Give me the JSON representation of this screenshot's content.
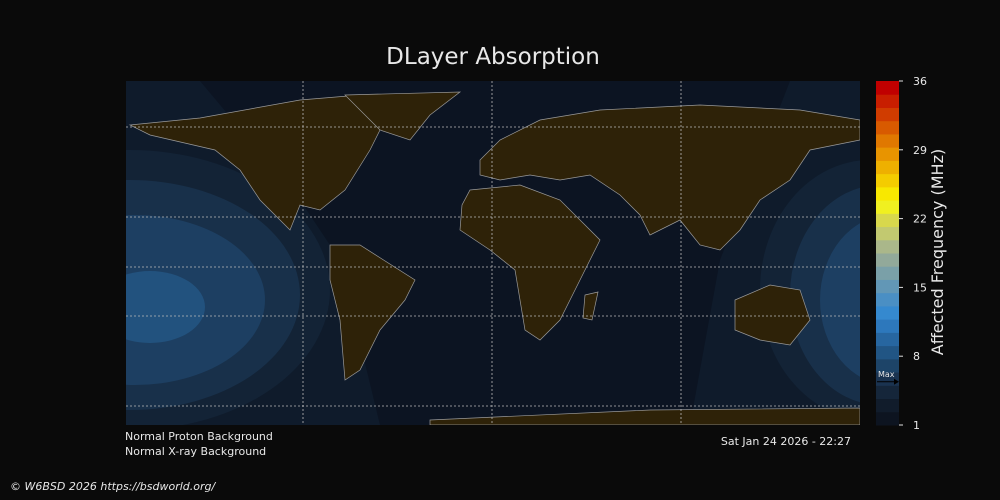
{
  "title": "DLayer Absorption",
  "colorbar": {
    "label": "Affected Frequency (MHz)",
    "lim": [
      1,
      36
    ],
    "ticks": [
      1,
      8,
      15,
      22,
      29,
      36
    ],
    "colors": [
      "#0d1420",
      "#111c2b",
      "#15263a",
      "#1a3350",
      "#1d4468",
      "#215584",
      "#2766a0",
      "#2d78bc",
      "#3589cf",
      "#4a8fc4",
      "#6297b6",
      "#7aa0a8",
      "#92a99a",
      "#aab78a",
      "#c2c970",
      "#d8d84c",
      "#f0f020",
      "#f8e800",
      "#f4cc00",
      "#eeb000",
      "#e89400",
      "#e07800",
      "#d85a00",
      "#d03c00",
      "#c81e00",
      "#c00000"
    ],
    "max_label": "Max",
    "max_value": 5.4
  },
  "status": {
    "proton": "Normal Proton Background",
    "xray": "Normal X-ray Background",
    "timestamp": "Sat Jan 24 2026 - 22:27"
  },
  "footer": "© W6BSD 2026 https://bsdworld.org/"
}
